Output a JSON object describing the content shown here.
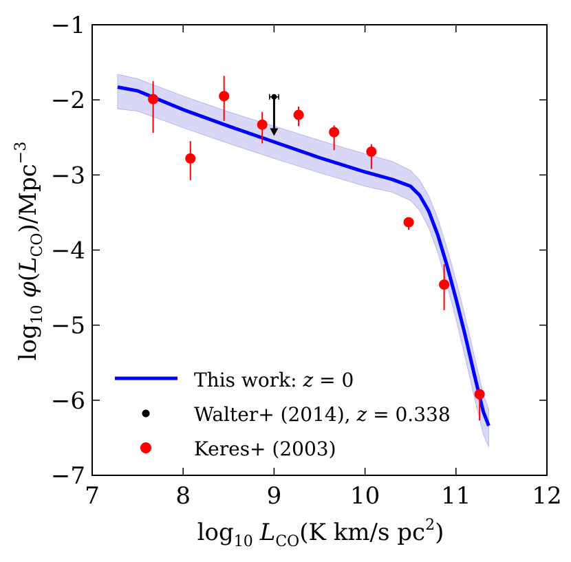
{
  "chart_data": {
    "type": "scatter",
    "xlabel": {
      "pre": "log",
      "sub": "10",
      "var": "L",
      "varsub": "CO",
      "post": "(K km/s pc",
      "sup": "2",
      "close": ")"
    },
    "ylabel": {
      "pre": "log",
      "sub": "10",
      "phi": "φ",
      "open": "(",
      "var": "L",
      "varsub": "CO",
      "post": ")/Mpc",
      "sup": "−3"
    },
    "xlim": [
      7,
      12
    ],
    "ylim": [
      -7,
      -1
    ],
    "xticks": [
      7,
      8,
      9,
      10,
      11,
      12
    ],
    "xtick_labels": [
      "7",
      "8",
      "9",
      "10",
      "11",
      "12"
    ],
    "yticks": [
      -7,
      -6,
      -5,
      -4,
      -3,
      -2,
      -1
    ],
    "ytick_labels": [
      "−7",
      "−6",
      "−5",
      "−4",
      "−3",
      "−2",
      "−1"
    ],
    "colors": {
      "model": "#0000ff",
      "band": "#d8d8f6",
      "keres": "#ff0000",
      "walter": "#000000"
    },
    "series": [
      {
        "name": "This work",
        "type": "line",
        "x": [
          7.28,
          7.5,
          8.0,
          8.5,
          9.0,
          9.5,
          10.0,
          10.3,
          10.5,
          10.6,
          10.7,
          10.8,
          10.9,
          11.0,
          11.1,
          11.2,
          11.3,
          11.36
        ],
        "y": [
          -1.83,
          -1.88,
          -2.13,
          -2.35,
          -2.56,
          -2.77,
          -2.96,
          -3.06,
          -3.15,
          -3.27,
          -3.48,
          -3.8,
          -4.2,
          -4.65,
          -5.13,
          -5.65,
          -6.15,
          -6.34
        ],
        "band_upper": [
          -1.66,
          -1.72,
          -1.95,
          -2.16,
          -2.35,
          -2.54,
          -2.72,
          -2.82,
          -2.94,
          -3.07,
          -3.28,
          -3.58,
          -3.97,
          -4.4,
          -4.88,
          -5.4,
          -5.92,
          -6.12
        ],
        "band_lower": [
          -2.12,
          -2.15,
          -2.37,
          -2.58,
          -2.78,
          -2.97,
          -3.15,
          -3.23,
          -3.34,
          -3.47,
          -3.7,
          -4.03,
          -4.45,
          -4.92,
          -5.42,
          -5.95,
          -6.45,
          -6.62
        ]
      },
      {
        "name": "Keres+ (2003)",
        "type": "errorbar",
        "x": [
          7.67,
          8.08,
          8.45,
          8.87,
          9.27,
          9.66,
          10.07,
          10.48,
          10.87,
          11.26
        ],
        "y": [
          -1.99,
          -2.78,
          -1.95,
          -2.33,
          -2.2,
          -2.43,
          -2.69,
          -3.63,
          -4.46,
          -5.92
        ],
        "yerr_upper": [
          0.24,
          0.23,
          0.27,
          0.17,
          0.11,
          0.09,
          0.1,
          0.05,
          0.27,
          0.05
        ],
        "yerr_lower": [
          0.45,
          0.29,
          0.33,
          0.25,
          0.15,
          0.24,
          0.23,
          0.1,
          0.34,
          0.35
        ]
      },
      {
        "name": "Walter+ (2014)",
        "type": "upper_limit",
        "x": [
          9.0
        ],
        "y": [
          -1.96
        ],
        "y_limit": [
          -2.47
        ],
        "xerr": [
          0.05
        ]
      }
    ],
    "legend": {
      "position": "lower-left",
      "entries": [
        {
          "prefix": "This work: ",
          "var": "z",
          "suffix": " = 0",
          "marker": "line",
          "color": "#0000ff"
        },
        {
          "prefix": "Walter+ (2014), ",
          "var": "z",
          "suffix": " = 0.338",
          "marker": "small-dot",
          "color": "#000000"
        },
        {
          "prefix": "Keres+ (2003)",
          "var": "",
          "suffix": "",
          "marker": "dot",
          "color": "#ff0000"
        }
      ]
    }
  }
}
